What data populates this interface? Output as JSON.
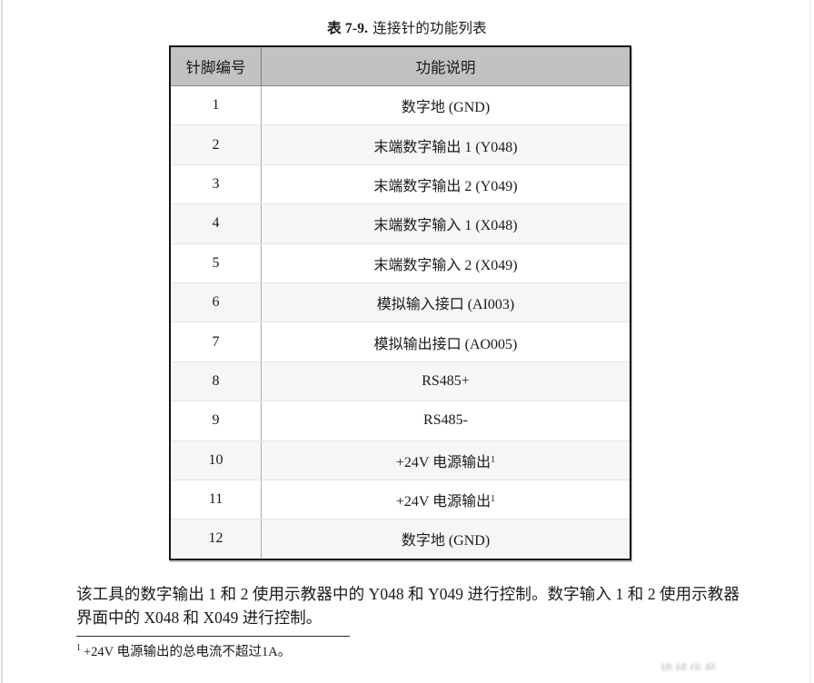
{
  "page": {
    "title": {
      "bold_part": "表 7-9.",
      "rest_part": "连接针的功能列表"
    },
    "table": {
      "headers": {
        "pin": "针脚编号",
        "function": "功能说明"
      },
      "rows": [
        {
          "pin": "1",
          "function": "数字地 (GND)"
        },
        {
          "pin": "2",
          "function": "末端数字输出 1 (Y048)"
        },
        {
          "pin": "3",
          "function": "末端数字输出 2 (Y049)"
        },
        {
          "pin": "4",
          "function": "末端数字输入 1 (X048)"
        },
        {
          "pin": "5",
          "function": "末端数字输入 2 (X049)"
        },
        {
          "pin": "6",
          "function": "模拟输入接口 (AI003)"
        },
        {
          "pin": "7",
          "function": "模拟输出接口 (AO005)"
        },
        {
          "pin": "8",
          "function": "RS485+"
        },
        {
          "pin": "9",
          "function": "RS485-"
        },
        {
          "pin": "10",
          "function": "+24V 电源输出",
          "sup": "1"
        },
        {
          "pin": "11",
          "function": "+24V 电源输出",
          "sup": "1"
        },
        {
          "pin": "12",
          "function": "数字地 (GND)"
        }
      ]
    },
    "paragraph": "该工具的数字输出 1 和 2 使用示教器中的 Y048 和 Y049 进行控制。数字输入 1 和 2 使用示教器界面中的 X048 和 X049 进行控制。",
    "footnote": {
      "marker": "1",
      "text": "+24V 电源输出的总电流不超过1A。"
    },
    "artifact_text": "接线信号",
    "colors": {
      "header_bg": "#c2c2c2",
      "alt_row_bg": "#f6f6f6",
      "table_border": "#161616"
    }
  }
}
